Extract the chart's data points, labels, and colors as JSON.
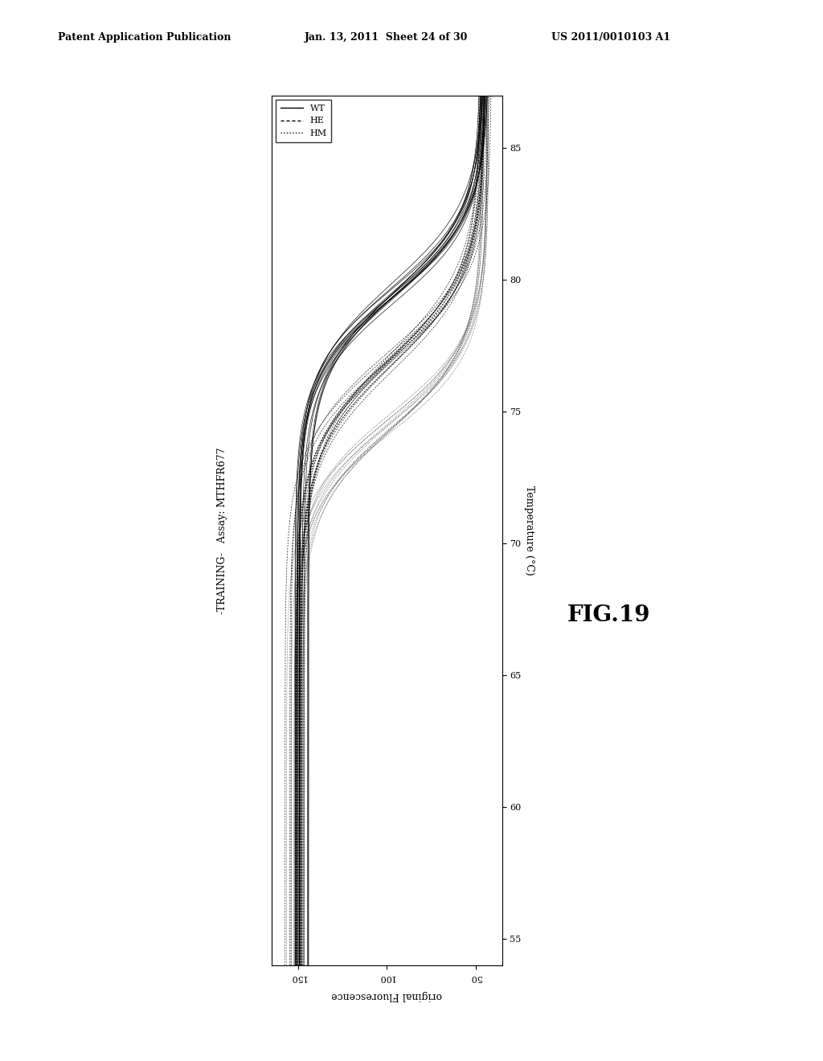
{
  "header_left": "Patent Application Publication",
  "header_mid": "Jan. 13, 2011  Sheet 24 of 30",
  "header_right": "US 2011/0010103 A1",
  "fig_label": "FIG.19",
  "title_rotated": "-TRAINING-   Assay: MTHFR677",
  "xlabel": "original Fluorescence",
  "ylabel": "Temperature (°C)",
  "xlim": [
    35,
    165
  ],
  "ylim": [
    54,
    87
  ],
  "yticks": [
    55,
    60,
    65,
    70,
    75,
    80,
    85
  ],
  "xticks": [
    50,
    100,
    150
  ],
  "legend_labels": [
    "WT",
    "HE",
    "HM"
  ],
  "n_wt": 15,
  "n_he": 16,
  "n_hm": 12,
  "background_color": "#ffffff",
  "wt_tm": 79.5,
  "he_tm": 77.0,
  "hm_tm": 74.5,
  "f_high_base": 150,
  "f_low_base": 45,
  "slope_base": 0.65
}
